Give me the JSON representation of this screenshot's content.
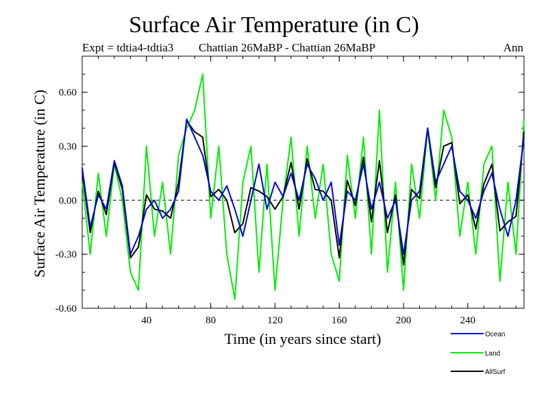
{
  "chart_data": {
    "type": "line",
    "title": "Surface Air Temperature (in C)",
    "subtitle_left": "Expt = tdtia4-tdtia3",
    "subtitle_center": "Chattian  26MaBP - Chattian  26MaBP",
    "subtitle_right": "Ann",
    "xlabel": "Time (in years since start)",
    "ylabel": "Surface Air Temperature (in C)",
    "xlim": [
      0,
      275
    ],
    "ylim": [
      -0.6,
      0.8
    ],
    "xticks": [
      40,
      80,
      120,
      160,
      200,
      240
    ],
    "yticks": [
      -0.6,
      -0.3,
      0.0,
      0.3,
      0.6
    ],
    "ytick_labels": [
      "-0.60",
      "-0.30",
      "0.00",
      "0.30",
      "0.60"
    ],
    "zero_line": true,
    "x": [
      0,
      5,
      10,
      15,
      20,
      25,
      30,
      35,
      40,
      45,
      50,
      55,
      60,
      65,
      70,
      75,
      80,
      85,
      90,
      95,
      100,
      105,
      110,
      115,
      120,
      125,
      130,
      135,
      140,
      145,
      150,
      155,
      160,
      165,
      170,
      175,
      180,
      185,
      190,
      195,
      200,
      205,
      210,
      215,
      220,
      225,
      230,
      235,
      240,
      245,
      250,
      255,
      260,
      265,
      270,
      275
    ],
    "series": [
      {
        "name": "Ocean",
        "color": "#0000dd",
        "values": [
          0.18,
          -0.15,
          0.03,
          -0.05,
          0.22,
          0.08,
          -0.3,
          -0.2,
          -0.05,
          0.0,
          -0.1,
          -0.05,
          0.05,
          0.45,
          0.35,
          0.25,
          0.05,
          0.0,
          0.08,
          -0.05,
          -0.2,
          0.0,
          0.2,
          -0.05,
          0.1,
          0.02,
          0.15,
          0.0,
          0.2,
          0.12,
          0.0,
          0.1,
          -0.25,
          0.05,
          0.0,
          0.2,
          -0.05,
          0.1,
          -0.1,
          0.0,
          -0.3,
          0.0,
          0.05,
          0.4,
          0.1,
          0.2,
          0.3,
          0.05,
          0.0,
          -0.1,
          0.05,
          0.15,
          -0.05,
          -0.2,
          0.0,
          0.35
        ]
      },
      {
        "name": "Land",
        "color": "#00ee00",
        "values": [
          0.1,
          -0.3,
          0.15,
          -0.2,
          0.2,
          0.0,
          -0.4,
          -0.5,
          0.3,
          -0.2,
          0.1,
          -0.3,
          0.25,
          0.4,
          0.5,
          0.7,
          -0.1,
          0.3,
          -0.3,
          -0.55,
          0.1,
          0.3,
          -0.4,
          0.2,
          -0.5,
          0.0,
          0.35,
          -0.2,
          0.3,
          -0.1,
          0.2,
          -0.3,
          -0.45,
          0.25,
          -0.1,
          0.35,
          -0.3,
          0.5,
          -0.4,
          0.1,
          -0.5,
          0.2,
          -0.1,
          0.4,
          0.0,
          0.5,
          0.35,
          -0.2,
          0.1,
          -0.3,
          0.2,
          0.3,
          -0.45,
          0.1,
          -0.3,
          0.45
        ]
      },
      {
        "name": "AllSurf",
        "color": "#000000",
        "values": [
          0.16,
          -0.18,
          0.05,
          -0.08,
          0.21,
          0.06,
          -0.32,
          -0.26,
          0.03,
          -0.05,
          -0.06,
          -0.1,
          0.1,
          0.44,
          0.38,
          0.35,
          0.02,
          0.06,
          0.0,
          -0.18,
          -0.13,
          0.07,
          0.05,
          0.02,
          -0.05,
          0.02,
          0.21,
          -0.05,
          0.23,
          0.06,
          0.05,
          0.0,
          -0.32,
          0.11,
          -0.03,
          0.24,
          -0.12,
          0.22,
          -0.18,
          0.03,
          -0.36,
          0.06,
          0.01,
          0.4,
          0.07,
          0.3,
          0.32,
          -0.02,
          0.03,
          -0.16,
          0.09,
          0.2,
          -0.17,
          -0.12,
          -0.09,
          0.38
        ]
      }
    ]
  }
}
